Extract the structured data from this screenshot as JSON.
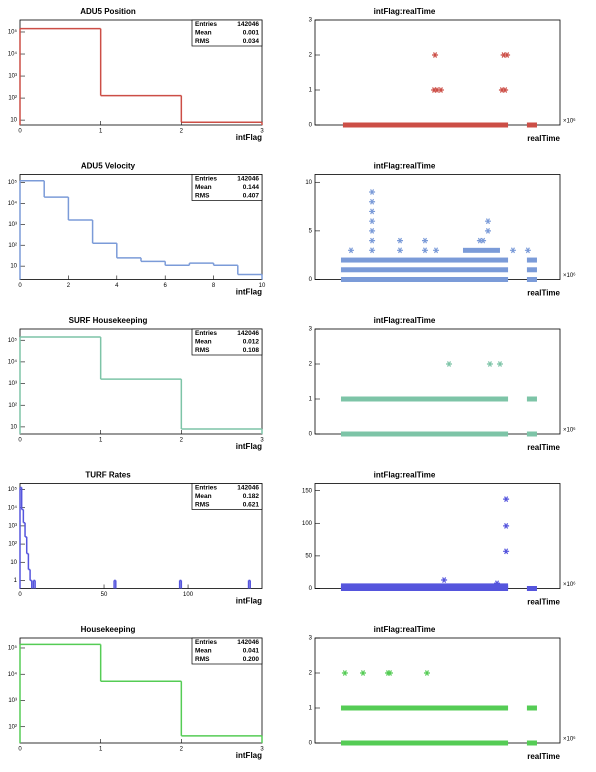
{
  "chart_data": [
    {
      "type": "histogram",
      "title": "ADU5 Position",
      "x_label": "intFlag",
      "color": "#cc4e46",
      "bins": [
        0,
        1,
        2,
        3
      ],
      "counts": [
        141900,
        130,
        8
      ],
      "xlim": [
        0,
        3
      ],
      "xticks": [
        0,
        1,
        2,
        3
      ],
      "log_y": true,
      "ylim": [
        6,
        350000
      ],
      "yticks": [
        10,
        {
          "value": 100,
          "label": "10²"
        },
        {
          "value": 1000,
          "label": "10³"
        },
        {
          "value": 10000,
          "label": "10⁴"
        },
        {
          "value": 100000,
          "label": "10⁵"
        }
      ],
      "stats": [
        [
          "Entries",
          "142046"
        ],
        [
          "Mean",
          "0.001"
        ],
        [
          "RMS",
          "0.034"
        ]
      ]
    },
    {
      "type": "scatter",
      "title": "intFlag:realTime",
      "x_label": "realTime",
      "x_exponent": "×10⁶",
      "color": "#cc4e46",
      "xlim": [
        0,
        100
      ],
      "ylim": [
        0,
        3
      ],
      "yticks": [
        0,
        1,
        2,
        3
      ],
      "bands": {
        "y": [
          0,
          0
        ],
        "x_from": [
          11.4,
          86.5
        ],
        "x_to": [
          78.8,
          90.6
        ]
      },
      "points": {
        "x": [
          49,
          77,
          78.4,
          48.6,
          49.8,
          51.4,
          76.3,
          77.6
        ],
        "y": [
          2,
          2,
          2,
          1,
          1,
          1,
          1,
          1
        ]
      }
    },
    {
      "type": "histogram",
      "title": "ADU5 Velocity",
      "x_label": "intFlag",
      "color": "#7b9bd8",
      "bins": [
        0,
        1,
        2,
        3,
        4,
        5,
        6,
        7,
        8,
        9,
        10
      ],
      "counts": [
        120000,
        20000,
        1600,
        125,
        25,
        17,
        11,
        14,
        11,
        4
      ],
      "xlim": [
        0,
        10
      ],
      "xticks": [
        0,
        2,
        4,
        6,
        8,
        10
      ],
      "log_y": true,
      "ylim": [
        2.3,
        240000
      ],
      "yticks": [
        10,
        {
          "value": 100,
          "label": "10²"
        },
        {
          "value": 1000,
          "label": "10³"
        },
        {
          "value": 10000,
          "label": "10⁴"
        },
        {
          "value": 100000,
          "label": "10⁵"
        }
      ],
      "stats": [
        [
          "Entries",
          "142046"
        ],
        [
          "Mean",
          "0.144"
        ],
        [
          "RMS",
          "0.407"
        ]
      ]
    },
    {
      "type": "scatter",
      "title": "intFlag:realTime",
      "x_label": "realTime",
      "x_exponent": "×10⁶",
      "color": "#7b9bd8",
      "xlim": [
        0,
        100
      ],
      "ylim": [
        0,
        10.8
      ],
      "yticks": [
        0,
        5,
        10
      ],
      "bands": {
        "y": [
          0,
          0,
          1,
          1,
          2,
          2,
          3
        ],
        "x_from": [
          10.6,
          86.5,
          10.6,
          86.5,
          10.6,
          86.5,
          60.4
        ],
        "x_to": [
          78.8,
          90.6,
          78.8,
          90.6,
          78.8,
          90.6,
          75.5
        ]
      },
      "points": {
        "x": [
          14.7,
          23.3,
          23.3,
          23.3,
          23.3,
          23.3,
          23.3,
          23.3,
          34.7,
          34.7,
          44.9,
          44.9,
          49.4,
          67.3,
          68.6,
          70.6,
          70.6,
          80.8,
          86.9
        ],
        "y": [
          3,
          3,
          4,
          5,
          6,
          7,
          8,
          9,
          3,
          4,
          3,
          4,
          3,
          4,
          4,
          5,
          6,
          3,
          3
        ]
      }
    },
    {
      "type": "histogram",
      "title": "SURF Housekeeping",
      "x_label": "intFlag",
      "color": "#7dc4a7",
      "bins": [
        0,
        1,
        2,
        3
      ],
      "counts": [
        140400,
        1600,
        8
      ],
      "xlim": [
        0,
        3
      ],
      "xticks": [
        0,
        1,
        2,
        3
      ],
      "log_y": true,
      "ylim": [
        4.7,
        330000
      ],
      "yticks": [
        10,
        {
          "value": 100,
          "label": "10²"
        },
        {
          "value": 1000,
          "label": "10³"
        },
        {
          "value": 10000,
          "label": "10⁴"
        },
        {
          "value": 100000,
          "label": "10⁵"
        }
      ],
      "stats": [
        [
          "Entries",
          "142046"
        ],
        [
          "Mean",
          "0.012"
        ],
        [
          "RMS",
          "0.108"
        ]
      ]
    },
    {
      "type": "scatter",
      "title": "intFlag:realTime",
      "x_label": "realTime",
      "x_exponent": "×10⁶",
      "color": "#7dc4a7",
      "xlim": [
        0,
        100
      ],
      "ylim": [
        0,
        3
      ],
      "yticks": [
        0,
        1,
        2,
        3
      ],
      "bands": {
        "y": [
          0,
          0,
          1,
          1
        ],
        "x_from": [
          10.6,
          86.5,
          10.6,
          86.5
        ],
        "x_to": [
          78.8,
          90.6,
          78.8,
          90.6
        ]
      },
      "points": {
        "x": [
          54.7,
          71.4,
          75.5
        ],
        "y": [
          2,
          2,
          2
        ]
      }
    },
    {
      "type": "histogram",
      "title": "TURF Rates",
      "x_label": "intFlag",
      "color": "#5555dd",
      "bins": [
        0,
        1,
        2,
        3,
        4,
        5,
        6,
        7,
        8,
        9,
        56,
        57,
        95,
        96,
        136,
        137
      ],
      "counts": [
        130000,
        8000,
        1500,
        250,
        30,
        4,
        1,
        0,
        1,
        0,
        1,
        0,
        1,
        0,
        1
      ],
      "xlim": [
        0,
        144
      ],
      "xticks": [
        0,
        50,
        100
      ],
      "log_y": true,
      "ylim": [
        0.36,
        215000
      ],
      "yticks": [
        1,
        10,
        {
          "value": 100,
          "label": "10²"
        },
        {
          "value": 1000,
          "label": "10³"
        },
        {
          "value": 10000,
          "label": "10⁴"
        },
        {
          "value": 100000,
          "label": "10⁵"
        }
      ],
      "stats": [
        [
          "Entries",
          "142046"
        ],
        [
          "Mean",
          "0.182"
        ],
        [
          "RMS",
          "0.621"
        ]
      ]
    },
    {
      "type": "scatter",
      "title": "intFlag:realTime",
      "x_label": "realTime",
      "x_exponent": "×10⁶",
      "color": "#5555dd",
      "xlim": [
        0,
        100
      ],
      "ylim": [
        0,
        161
      ],
      "yticks": [
        0,
        50,
        100,
        150
      ],
      "bands": {
        "y": [
          0,
          0,
          2,
          4
        ],
        "x_from": [
          10.6,
          86.5,
          10.6,
          10.6
        ],
        "x_to": [
          78.8,
          90.6,
          78.8,
          78.8
        ]
      },
      "points": {
        "x": [
          52.7,
          74.3,
          78,
          78,
          78
        ],
        "y": [
          13,
          8,
          57,
          96,
          137
        ]
      }
    },
    {
      "type": "histogram",
      "title": "Housekeeping",
      "x_label": "intFlag",
      "color": "#55cc55",
      "bins": [
        0,
        1,
        2,
        3
      ],
      "counts": [
        136500,
        5400,
        45
      ],
      "xlim": [
        0,
        3
      ],
      "xticks": [
        0,
        1,
        2,
        3
      ],
      "log_y": true,
      "ylim": [
        24,
        240000
      ],
      "yticks": [
        {
          "value": 100,
          "label": "10²"
        },
        {
          "value": 1000,
          "label": "10³"
        },
        {
          "value": 10000,
          "label": "10⁴"
        },
        {
          "value": 100000,
          "label": "10⁵"
        }
      ],
      "stats": [
        [
          "Entries",
          "142046"
        ],
        [
          "Mean",
          "0.041"
        ],
        [
          "RMS",
          "0.200"
        ]
      ]
    },
    {
      "type": "scatter",
      "title": "intFlag:realTime",
      "x_label": "realTime",
      "x_exponent": "×10⁶",
      "color": "#55cc55",
      "xlim": [
        0,
        100
      ],
      "ylim": [
        0,
        3
      ],
      "yticks": [
        0,
        1,
        2,
        3
      ],
      "bands": {
        "y": [
          0,
          0,
          1,
          1
        ],
        "x_from": [
          10.6,
          86.5,
          10.6,
          86.5
        ],
        "x_to": [
          78.8,
          90.6,
          78.8,
          90.6
        ]
      },
      "points": {
        "x": [
          12.2,
          19.6,
          29.8,
          30.6,
          45.7
        ],
        "y": [
          2,
          2,
          2,
          2,
          2
        ]
      }
    }
  ]
}
